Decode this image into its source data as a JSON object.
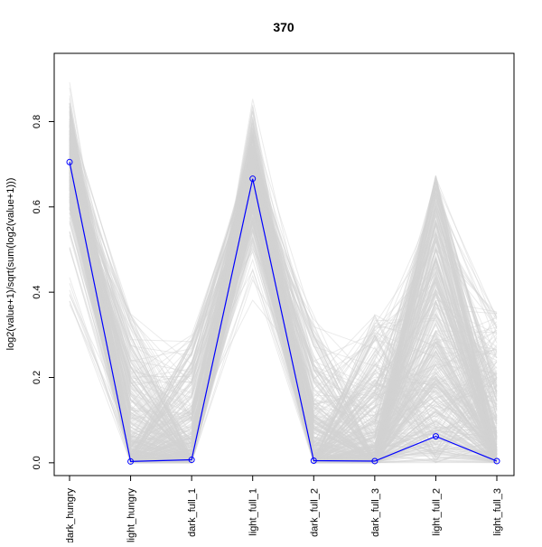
{
  "chart_data": {
    "type": "line",
    "title": "370",
    "xlabel": "",
    "ylabel": "log2(value+1)/sqrt(sum(log2(value+1)))",
    "categories": [
      "dark_hungry",
      "light_hungry",
      "dark_full_1",
      "light_full_1",
      "dark_full_2",
      "dark_full_3",
      "light_full_2",
      "light_full_3"
    ],
    "ylim": [
      -0.03,
      0.96
    ],
    "yticks": [
      0.0,
      0.2,
      0.4,
      0.6,
      0.8
    ],
    "ytick_labels": [
      "0.0",
      "0.2",
      "0.4",
      "0.6",
      "0.8"
    ],
    "grid": false,
    "legend": "none",
    "highlight_series": {
      "color": "#0000ff",
      "marker": "open-circle",
      "values": [
        0.705,
        0.003,
        0.007,
        0.666,
        0.005,
        0.004,
        0.062,
        0.004
      ]
    },
    "background_series": {
      "color": "#d3d3d3",
      "count": "many",
      "description_ranges": {
        "dark_hungry": [
          0.37,
          0.9
        ],
        "light_hungry": [
          0.0,
          0.35
        ],
        "dark_full_1": [
          0.0,
          0.3
        ],
        "light_full_1": [
          0.37,
          0.86
        ],
        "dark_full_2": [
          0.0,
          0.35
        ],
        "dark_full_3": [
          0.0,
          0.35
        ],
        "light_full_2": [
          0.0,
          0.68
        ],
        "light_full_3": [
          0.0,
          0.36
        ]
      }
    }
  }
}
